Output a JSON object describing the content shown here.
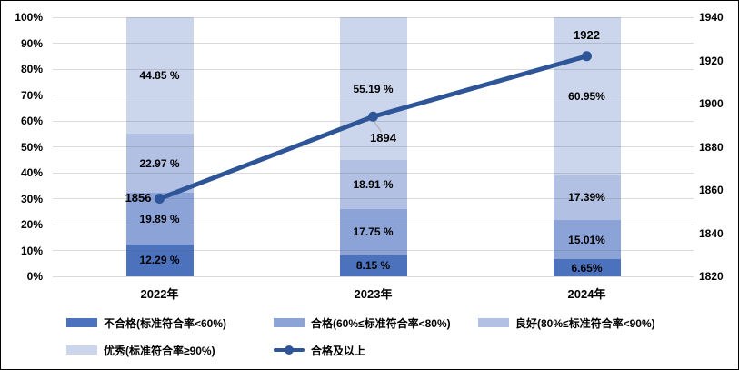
{
  "chart_data": {
    "type": "bar",
    "subtype": "stacked-percent-bars-with-line",
    "categories": [
      "2022年",
      "2023年",
      "2024年"
    ],
    "bar_series": [
      {
        "name": "不合格(标准符合率<60%)",
        "color": "#4C72BE",
        "values": [
          12.29,
          8.15,
          6.65
        ],
        "labels": [
          "12.29 %",
          "8.15 %",
          "6.65%"
        ]
      },
      {
        "name": "合格(60%≤标准符合率<80%)",
        "color": "#8CA3D8",
        "values": [
          19.89,
          17.75,
          15.01
        ],
        "labels": [
          "19.89 %",
          "17.75 %",
          "15.01%"
        ]
      },
      {
        "name": "良好(80%≤标准符合率<90%)",
        "color": "#B2C0E3",
        "values": [
          22.97,
          18.91,
          17.39
        ],
        "labels": [
          "22.97 %",
          "18.91 %",
          "17.39%"
        ]
      },
      {
        "name": "优秀(标准符合率≥90%)",
        "color": "#CBD6EC",
        "values": [
          44.85,
          55.19,
          60.95
        ],
        "labels": [
          "44.85 %",
          "55.19 %",
          "60.95%"
        ]
      }
    ],
    "line_series": {
      "name": "合格及以上",
      "color": "#2E5597",
      "values": [
        1856,
        1894,
        1922
      ],
      "labels": [
        "1856",
        "1894",
        "1922"
      ],
      "label_positions": [
        "left",
        "below",
        "above"
      ]
    },
    "left_axis": {
      "ticks": [
        "0%",
        "10%",
        "20%",
        "30%",
        "40%",
        "50%",
        "60%",
        "70%",
        "80%",
        "90%",
        "100%"
      ],
      "min": 0,
      "max": 100
    },
    "right_axis": {
      "ticks": [
        "1820",
        "1840",
        "1860",
        "1880",
        "1900",
        "1920",
        "1940"
      ],
      "min": 1820,
      "max": 1940
    },
    "legend": [
      {
        "label": "不合格(标准符合率<60%)",
        "type": "swatch",
        "color": "#4C72BE"
      },
      {
        "label": "合格(60%≤标准符合率<80%)",
        "type": "swatch",
        "color": "#8CA3D8"
      },
      {
        "label": "良好(80%≤标准符合率<90%)",
        "type": "swatch",
        "color": "#B2C0E3"
      },
      {
        "label": "优秀(标准符合率≥90%)",
        "type": "swatch",
        "color": "#CBD6EC"
      },
      {
        "label": "合格及以上",
        "type": "line",
        "color": "#2E5597"
      }
    ],
    "grid": "on",
    "legend_position": "bottom",
    "colors": {
      "gridline": "#D9D9D9",
      "leader_line": "#A6A6A6",
      "text": "#000000",
      "frame_border": "#000000"
    }
  }
}
